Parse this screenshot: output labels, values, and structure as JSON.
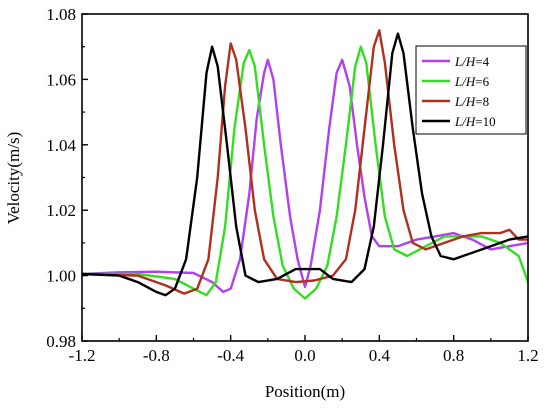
{
  "chart_data": {
    "type": "line",
    "title": "",
    "xlabel": "Position(m)",
    "ylabel": "Velocity(m/s)",
    "xlim": [
      -1.2,
      1.2
    ],
    "ylim": [
      0.98,
      1.08
    ],
    "xticks": [
      "-1.2",
      "-0.8",
      "-0.4",
      "0.0",
      "0.4",
      "0.8",
      "1.2"
    ],
    "yticks": [
      "0.98",
      "1.00",
      "1.02",
      "1.04",
      "1.06",
      "1.08"
    ],
    "grid": false,
    "legend_position": "top-right",
    "series": [
      {
        "name": "L/H=4",
        "name_italic": "L/H",
        "name_rest": "=4",
        "color": "#b040f0",
        "points": [
          [
            -1.2,
            1.0005
          ],
          [
            -1.0,
            1.001
          ],
          [
            -0.8,
            1.0012
          ],
          [
            -0.6,
            1.0008
          ],
          [
            -0.5,
            0.998
          ],
          [
            -0.44,
            0.995
          ],
          [
            -0.4,
            0.996
          ],
          [
            -0.35,
            1.005
          ],
          [
            -0.3,
            1.025
          ],
          [
            -0.26,
            1.048
          ],
          [
            -0.22,
            1.062
          ],
          [
            -0.2,
            1.066
          ],
          [
            -0.17,
            1.06
          ],
          [
            -0.13,
            1.04
          ],
          [
            -0.08,
            1.018
          ],
          [
            -0.04,
            1.005
          ],
          [
            0.0,
            0.9965
          ],
          [
            0.03,
            1.003
          ],
          [
            0.08,
            1.02
          ],
          [
            0.13,
            1.045
          ],
          [
            0.17,
            1.062
          ],
          [
            0.2,
            1.066
          ],
          [
            0.24,
            1.058
          ],
          [
            0.28,
            1.04
          ],
          [
            0.32,
            1.024
          ],
          [
            0.36,
            1.012
          ],
          [
            0.4,
            1.009
          ],
          [
            0.5,
            1.009
          ],
          [
            0.6,
            1.011
          ],
          [
            0.7,
            1.012
          ],
          [
            0.8,
            1.013
          ],
          [
            0.9,
            1.011
          ],
          [
            1.0,
            1.008
          ],
          [
            1.1,
            1.009
          ],
          [
            1.2,
            1.01
          ]
        ]
      },
      {
        "name": "L/H=6",
        "name_italic": "L/H",
        "name_rest": "=6",
        "color": "#33dd22",
        "points": [
          [
            -1.2,
            1.0005
          ],
          [
            -0.9,
            1.0005
          ],
          [
            -0.7,
            0.999
          ],
          [
            -0.6,
            0.996
          ],
          [
            -0.53,
            0.994
          ],
          [
            -0.48,
            0.998
          ],
          [
            -0.43,
            1.015
          ],
          [
            -0.38,
            1.045
          ],
          [
            -0.33,
            1.065
          ],
          [
            -0.3,
            1.069
          ],
          [
            -0.27,
            1.064
          ],
          [
            -0.22,
            1.04
          ],
          [
            -0.17,
            1.018
          ],
          [
            -0.12,
            1.003
          ],
          [
            -0.06,
            0.996
          ],
          [
            0.0,
            0.993
          ],
          [
            0.06,
            0.996
          ],
          [
            0.12,
            1.003
          ],
          [
            0.17,
            1.018
          ],
          [
            0.22,
            1.04
          ],
          [
            0.27,
            1.064
          ],
          [
            0.3,
            1.07
          ],
          [
            0.33,
            1.065
          ],
          [
            0.38,
            1.04
          ],
          [
            0.43,
            1.018
          ],
          [
            0.48,
            1.008
          ],
          [
            0.55,
            1.006
          ],
          [
            0.65,
            1.009
          ],
          [
            0.75,
            1.012
          ],
          [
            0.85,
            1.012
          ],
          [
            0.95,
            1.012
          ],
          [
            1.05,
            1.01
          ],
          [
            1.1,
            1.008
          ],
          [
            1.15,
            1.006
          ],
          [
            1.2,
            0.998
          ]
        ]
      },
      {
        "name": "L/H=8",
        "name_italic": "L/H",
        "name_rest": "=8",
        "color": "#b03020",
        "points": [
          [
            -1.2,
            1.0005
          ],
          [
            -0.9,
            1.0
          ],
          [
            -0.75,
            0.997
          ],
          [
            -0.65,
            0.9945
          ],
          [
            -0.58,
            0.996
          ],
          [
            -0.52,
            1.005
          ],
          [
            -0.47,
            1.03
          ],
          [
            -0.43,
            1.058
          ],
          [
            -0.4,
            1.071
          ],
          [
            -0.37,
            1.066
          ],
          [
            -0.32,
            1.045
          ],
          [
            -0.27,
            1.02
          ],
          [
            -0.22,
            1.005
          ],
          [
            -0.15,
            0.999
          ],
          [
            -0.05,
            0.998
          ],
          [
            0.05,
            0.9985
          ],
          [
            0.15,
            1.0
          ],
          [
            0.22,
            1.005
          ],
          [
            0.27,
            1.02
          ],
          [
            0.32,
            1.045
          ],
          [
            0.37,
            1.07
          ],
          [
            0.4,
            1.075
          ],
          [
            0.43,
            1.065
          ],
          [
            0.48,
            1.04
          ],
          [
            0.53,
            1.02
          ],
          [
            0.58,
            1.01
          ],
          [
            0.65,
            1.008
          ],
          [
            0.75,
            1.01
          ],
          [
            0.85,
            1.012
          ],
          [
            0.95,
            1.013
          ],
          [
            1.05,
            1.013
          ],
          [
            1.1,
            1.014
          ],
          [
            1.15,
            1.011
          ],
          [
            1.2,
            1.011
          ]
        ]
      },
      {
        "name": "L/H=10",
        "name_italic": "L/H",
        "name_rest": "=10",
        "color": "#000000",
        "points": [
          [
            -1.2,
            1.0005
          ],
          [
            -1.0,
            1.0
          ],
          [
            -0.9,
            0.998
          ],
          [
            -0.8,
            0.995
          ],
          [
            -0.75,
            0.994
          ],
          [
            -0.7,
            0.996
          ],
          [
            -0.64,
            1.005
          ],
          [
            -0.58,
            1.03
          ],
          [
            -0.53,
            1.062
          ],
          [
            -0.5,
            1.07
          ],
          [
            -0.47,
            1.064
          ],
          [
            -0.42,
            1.04
          ],
          [
            -0.37,
            1.015
          ],
          [
            -0.32,
            1.0
          ],
          [
            -0.25,
            0.998
          ],
          [
            -0.15,
            0.999
          ],
          [
            -0.05,
            1.002
          ],
          [
            0.0,
            1.002
          ],
          [
            0.08,
            1.002
          ],
          [
            0.15,
            0.999
          ],
          [
            0.25,
            0.998
          ],
          [
            0.32,
            1.002
          ],
          [
            0.37,
            1.015
          ],
          [
            0.42,
            1.04
          ],
          [
            0.47,
            1.068
          ],
          [
            0.5,
            1.074
          ],
          [
            0.53,
            1.068
          ],
          [
            0.58,
            1.045
          ],
          [
            0.63,
            1.025
          ],
          [
            0.68,
            1.012
          ],
          [
            0.73,
            1.006
          ],
          [
            0.8,
            1.005
          ],
          [
            0.9,
            1.007
          ],
          [
            1.0,
            1.009
          ],
          [
            1.1,
            1.011
          ],
          [
            1.2,
            1.012
          ]
        ]
      }
    ]
  }
}
